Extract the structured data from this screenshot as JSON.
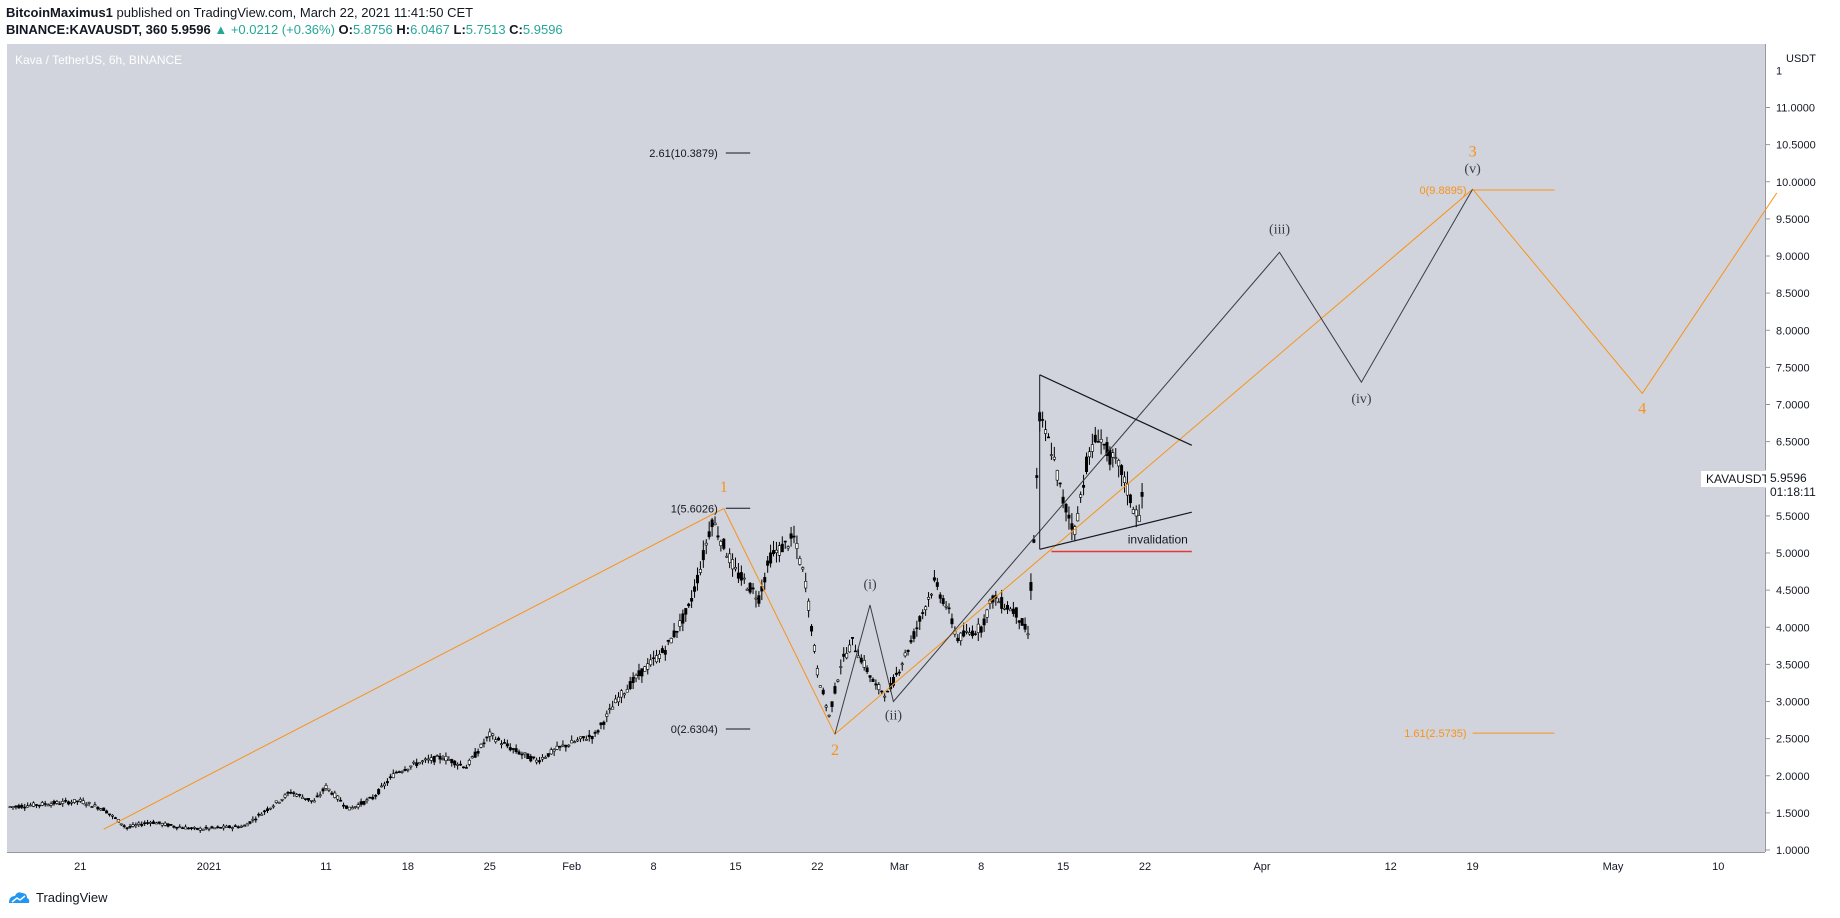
{
  "header": {
    "author": "BitcoinMaximus1",
    "published": "published on TradingView.com, March 22, 2021 11:41:50 CET",
    "symbol": "BINANCE:KAVAUSDT, 360",
    "last": "5.9596",
    "arrow": "▲",
    "change": "+0.0212 (+0.36%)",
    "o_label": "O:",
    "o": "5.8756",
    "h_label": "H:",
    "h": "6.0467",
    "l_label": "L:",
    "l": "5.7513",
    "c_label": "C:",
    "c": "5.9596"
  },
  "pair_title": "Kava / TetherUS, 6h, BINANCE",
  "price_box": {
    "symbol": "KAVAUSDT",
    "price": "5.9596",
    "countdown": "01:18:11"
  },
  "footer": {
    "brand": "TradingView"
  },
  "colors": {
    "wave": "#f7931a",
    "proj": "#131722",
    "bg": "#d1d4dc",
    "red": "#e53935",
    "green": "#26a69a"
  },
  "chart_data": {
    "type": "candlestick",
    "title": "Kava / TetherUS, 6h, BINANCE",
    "y_axis": {
      "unit": "USDT",
      "min": 1.0,
      "max": 11.5,
      "ticks": [
        "1.0000",
        "1.5000",
        "2.0000",
        "2.5000",
        "3.0000",
        "3.5000",
        "4.0000",
        "4.5000",
        "5.0000",
        "5.5000",
        "6.0000",
        "6.5000",
        "7.0000",
        "7.5000",
        "8.0000",
        "8.5000",
        "9.0000",
        "9.5000",
        "10.0000",
        "10.5000",
        "11.0000"
      ],
      "top_tick": "1"
    },
    "x_axis": {
      "ticks": [
        {
          "d": -11,
          "label": "21"
        },
        {
          "d": 0,
          "label": "2021"
        },
        {
          "d": 10,
          "label": "11"
        },
        {
          "d": 17,
          "label": "18"
        },
        {
          "d": 24,
          "label": "25"
        },
        {
          "d": 31,
          "label": "Feb"
        },
        {
          "d": 38,
          "label": "8"
        },
        {
          "d": 45,
          "label": "15"
        },
        {
          "d": 52,
          "label": "22"
        },
        {
          "d": 59,
          "label": "Mar"
        },
        {
          "d": 66,
          "label": "8"
        },
        {
          "d": 73,
          "label": "15"
        },
        {
          "d": 80,
          "label": "22"
        },
        {
          "d": 90,
          "label": "Apr"
        },
        {
          "d": 101,
          "label": "12"
        },
        {
          "d": 108,
          "label": "19"
        },
        {
          "d": 120,
          "label": "May"
        },
        {
          "d": 129,
          "label": "10"
        }
      ]
    },
    "price_path": [
      [
        -17,
        1.58
      ],
      [
        -14,
        1.62
      ],
      [
        -11,
        1.66
      ],
      [
        -9,
        1.55
      ],
      [
        -7,
        1.3
      ],
      [
        -5,
        1.38
      ],
      [
        -3,
        1.32
      ],
      [
        -1,
        1.28
      ],
      [
        1,
        1.3
      ],
      [
        3,
        1.32
      ],
      [
        5,
        1.55
      ],
      [
        7,
        1.78
      ],
      [
        9,
        1.65
      ],
      [
        10,
        1.85
      ],
      [
        12,
        1.55
      ],
      [
        14,
        1.7
      ],
      [
        16,
        2.05
      ],
      [
        18,
        2.18
      ],
      [
        20,
        2.25
      ],
      [
        22,
        2.12
      ],
      [
        24,
        2.55
      ],
      [
        26,
        2.35
      ],
      [
        28,
        2.2
      ],
      [
        30,
        2.38
      ],
      [
        32,
        2.5
      ],
      [
        33,
        2.55
      ],
      [
        35,
        3.05
      ],
      [
        37,
        3.4
      ],
      [
        39,
        3.7
      ],
      [
        41,
        4.25
      ],
      [
        42,
        4.8
      ],
      [
        43,
        5.45
      ],
      [
        44,
        5.1
      ],
      [
        45,
        4.75
      ],
      [
        47,
        4.4
      ],
      [
        48,
        4.95
      ],
      [
        50,
        5.2
      ],
      [
        51,
        4.6
      ],
      [
        52,
        3.4
      ],
      [
        53,
        2.8
      ],
      [
        54,
        3.5
      ],
      [
        55,
        3.8
      ],
      [
        57,
        3.2
      ],
      [
        58,
        3.1
      ],
      [
        60,
        3.8
      ],
      [
        62,
        4.6
      ],
      [
        63,
        4.3
      ],
      [
        64,
        3.85
      ],
      [
        66,
        4.0
      ],
      [
        67,
        4.4
      ],
      [
        69,
        4.2
      ],
      [
        70,
        3.9
      ],
      [
        70.5,
        5.2
      ],
      [
        71,
        6.8
      ],
      [
        72,
        6.4
      ],
      [
        73,
        5.7
      ],
      [
        74,
        5.3
      ],
      [
        75,
        6.2
      ],
      [
        76,
        6.6
      ],
      [
        77,
        6.3
      ],
      [
        78,
        6.1
      ],
      [
        79,
        5.6
      ],
      [
        79.5,
        5.5
      ],
      [
        80,
        5.96
      ]
    ],
    "elliott_wave_orange": [
      {
        "d": -9,
        "v": 1.28
      },
      {
        "d": 44,
        "v": 5.6
      },
      {
        "d": 53.5,
        "v": 2.56
      },
      {
        "d": 108,
        "v": 9.9
      },
      {
        "d": 122.5,
        "v": 7.15
      },
      {
        "d": 134,
        "v": 9.85
      }
    ],
    "elliott_wave_black": [
      {
        "d": 53.5,
        "v": 2.56
      },
      {
        "d": 56.5,
        "v": 4.3
      },
      {
        "d": 58.5,
        "v": 3.0
      },
      {
        "d": 91.5,
        "v": 9.05
      },
      {
        "d": 98.5,
        "v": 7.3
      },
      {
        "d": 108,
        "v": 9.9
      }
    ],
    "triangle": [
      {
        "from": {
          "d": 71,
          "v": 7.4
        },
        "to": {
          "d": 84,
          "v": 6.45
        }
      },
      {
        "from": {
          "d": 71,
          "v": 5.05
        },
        "to": {
          "d": 84,
          "v": 5.55
        }
      }
    ],
    "invalidation": {
      "level": 5.02,
      "label": "invalidation",
      "from_d": 72,
      "to_d": 84
    },
    "fib_levels": [
      {
        "label": "2.61(10.3879)",
        "value": 10.3879,
        "from_d": 44,
        "to_d": 46
      },
      {
        "label": "1(5.6026)",
        "value": 5.6026,
        "from_d": 44,
        "to_d": 46
      },
      {
        "label": "0(2.6304)",
        "value": 2.6304,
        "from_d": 44,
        "to_d": 46
      },
      {
        "label": "0(9.8895)",
        "value": 9.8895,
        "from_d": 108,
        "to_d": 115
      },
      {
        "label": "1.61(2.5735)",
        "value": 2.5735,
        "from_d": 108,
        "to_d": 115
      }
    ],
    "wave_labels": [
      {
        "text": "1",
        "d": 44,
        "v": 5.82,
        "color": "orange"
      },
      {
        "text": "2",
        "d": 53.5,
        "v": 2.28,
        "color": "orange"
      },
      {
        "text": "3",
        "d": 108,
        "v": 10.34,
        "color": "orange"
      },
      {
        "text": "4",
        "d": 122.5,
        "v": 6.88,
        "color": "orange"
      },
      {
        "text": "(i)",
        "d": 56.5,
        "v": 4.52,
        "color": "black"
      },
      {
        "text": "(ii)",
        "d": 58.5,
        "v": 2.76,
        "color": "black"
      },
      {
        "text": "(iii)",
        "d": 91.5,
        "v": 9.3,
        "color": "black"
      },
      {
        "text": "(iv)",
        "d": 98.5,
        "v": 7.02,
        "color": "black"
      },
      {
        "text": "(v)",
        "d": 108,
        "v": 10.12,
        "color": "black"
      }
    ]
  }
}
